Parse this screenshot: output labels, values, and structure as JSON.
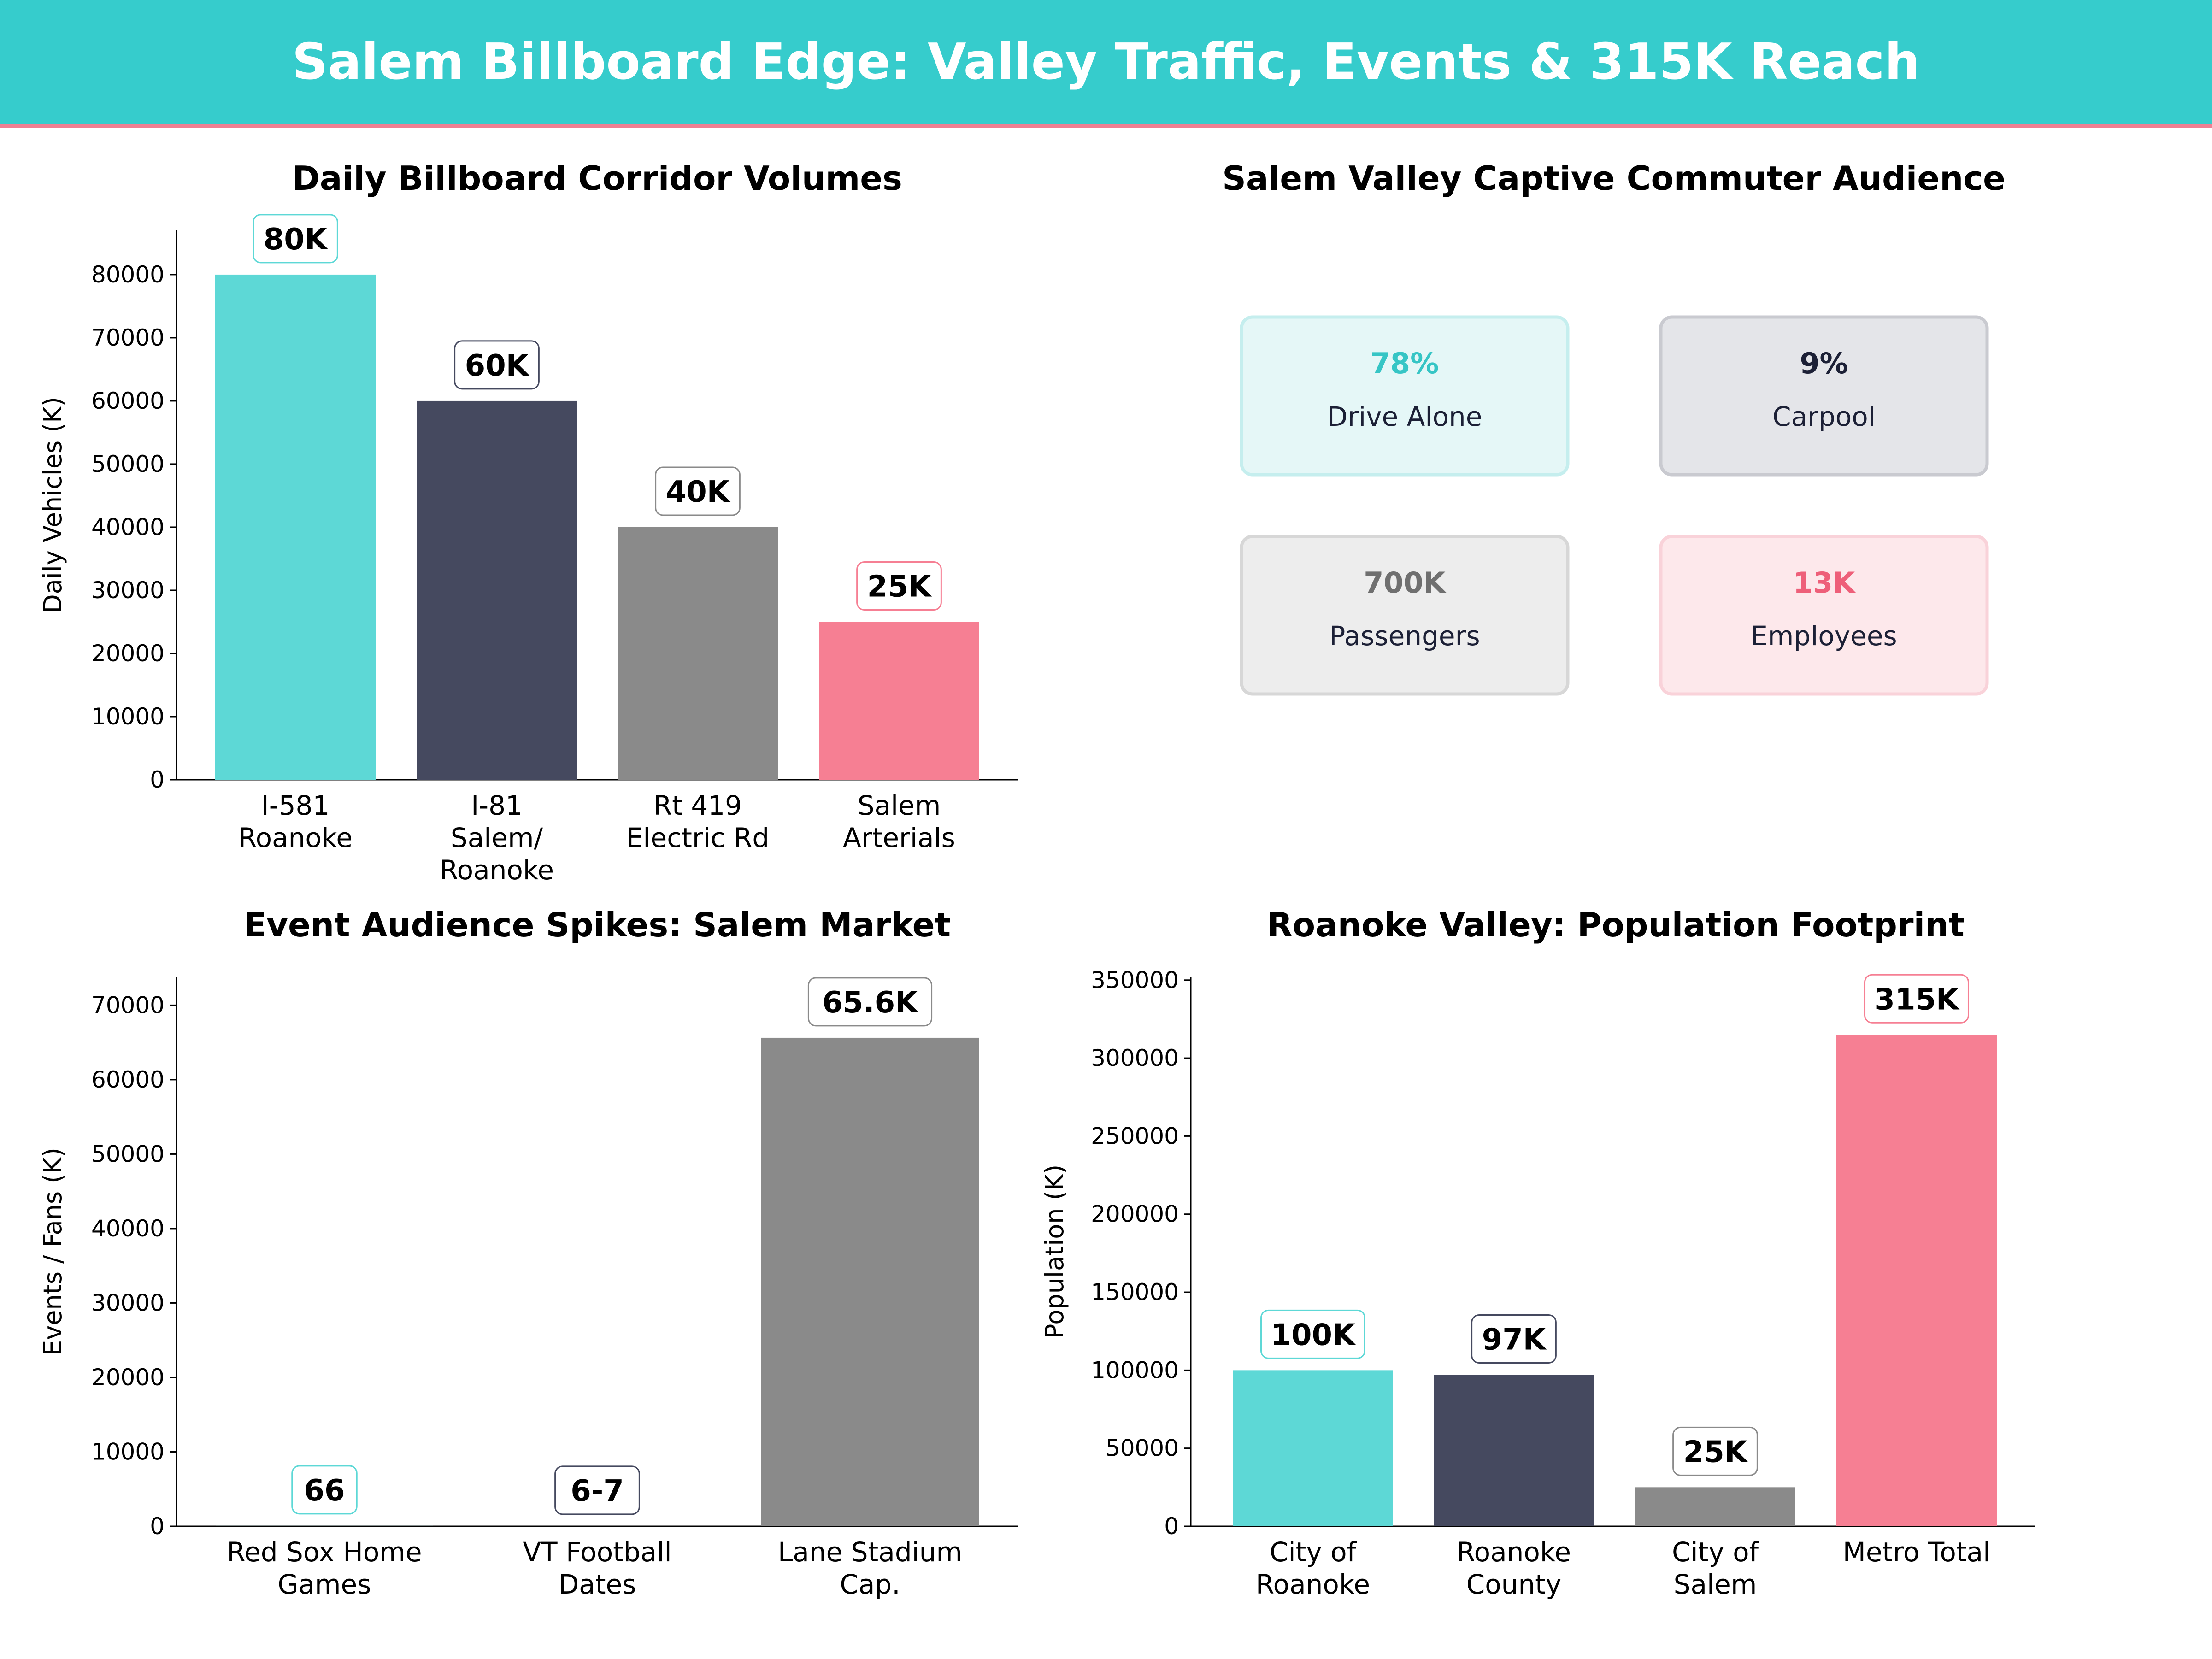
{
  "header": {
    "title": "Salem Billboard Edge: Valley Traffic, Events & 315K Reach"
  },
  "colors": {
    "teal": "#5dd8d6",
    "navy": "#45495f",
    "gray": "#8a8a8a",
    "pink": "#f67f93",
    "banner": "#36cccc"
  },
  "chart_data": [
    {
      "type": "bar",
      "title": "Daily Billboard Corridor Volumes",
      "ylabel": "Daily Vehicles (K)",
      "xlabel": "",
      "categories": [
        [
          "I-581",
          "Roanoke"
        ],
        [
          "I-81",
          "Salem/",
          "Roanoke"
        ],
        [
          "Rt 419",
          "Electric Rd"
        ],
        [
          "Salem",
          "Arterials"
        ]
      ],
      "values": [
        80000,
        60000,
        40000,
        25000
      ],
      "data_labels": [
        "80K",
        "60K",
        "40K",
        "25K"
      ],
      "yticks": [
        0,
        10000,
        20000,
        30000,
        40000,
        50000,
        60000,
        70000,
        80000
      ],
      "ylim": [
        0,
        87000
      ],
      "bar_colors": [
        "#5dd8d6",
        "#45495f",
        "#8a8a8a",
        "#f67f93"
      ],
      "grid": false
    },
    {
      "type": "table",
      "title": "Salem Valley Captive Commuter Audience",
      "cards": [
        {
          "value": "78%",
          "label": "Drive Alone",
          "color": "#36c5c5",
          "bg": "#e5f7f7",
          "border": "#c5eeee"
        },
        {
          "value": "9%",
          "label": "Carpool",
          "color": "#1c2036",
          "bg": "#e4e5e9",
          "border": "#c9cad0"
        },
        {
          "value": "700K",
          "label": "Passengers",
          "color": "#6f6f6f",
          "bg": "#ededed",
          "border": "#d7d7d7"
        },
        {
          "value": "13K",
          "label": "Employees",
          "color": "#ee5f79",
          "bg": "#fde8eb",
          "border": "#f9d2d9"
        }
      ]
    },
    {
      "type": "bar",
      "title": "Event Audience Spikes: Salem Market",
      "ylabel": "Events / Fans (K)",
      "xlabel": "",
      "categories": [
        [
          "Red Sox Home",
          "Games"
        ],
        [
          "VT Football",
          "Dates"
        ],
        [
          "Lane Stadium",
          "Cap."
        ]
      ],
      "values": [
        66,
        6.5,
        65632
      ],
      "data_labels": [
        "66",
        "6-7",
        "65.6K"
      ],
      "yticks": [
        0,
        10000,
        20000,
        30000,
        40000,
        50000,
        60000,
        70000
      ],
      "ylim": [
        0,
        73800
      ],
      "bar_colors": [
        "#5dd8d6",
        "#45495f",
        "#8a8a8a"
      ],
      "grid": false
    },
    {
      "type": "bar",
      "title": "Roanoke Valley: Population Footprint",
      "ylabel": "Population (K)",
      "xlabel": "",
      "categories": [
        [
          "City of",
          "Roanoke"
        ],
        [
          "Roanoke",
          "County"
        ],
        [
          "City of",
          "Salem"
        ],
        [
          "Metro Total"
        ]
      ],
      "values": [
        100000,
        97000,
        25000,
        315000
      ],
      "data_labels": [
        "100K",
        "97K",
        "25K",
        "315K"
      ],
      "yticks": [
        0,
        50000,
        100000,
        150000,
        200000,
        250000,
        300000,
        350000
      ],
      "ylim": [
        0,
        352000
      ],
      "bar_colors": [
        "#5dd8d6",
        "#45495f",
        "#8a8a8a",
        "#f67f93"
      ],
      "grid": false
    }
  ]
}
